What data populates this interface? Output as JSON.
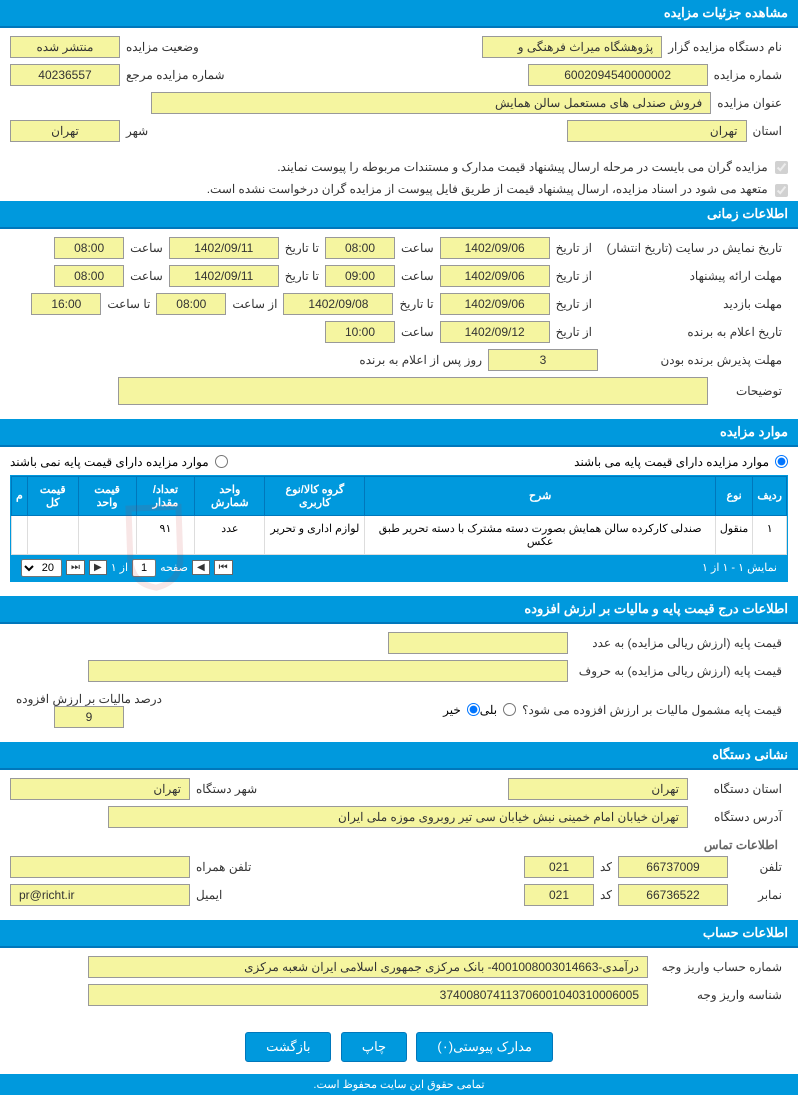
{
  "sections": {
    "details_header": "مشاهده جزئیات مزایده",
    "timing_header": "اطلاعات زمانی",
    "items_header": "موارد مزایده",
    "price_header": "اطلاعات درج قیمت پایه و مالیات بر ارزش افزوده",
    "org_header": "نشانی دستگاه",
    "account_header": "اطلاعات حساب"
  },
  "details": {
    "org_label": "نام دستگاه مزایده گزار",
    "org_value": "پژوهشگاه میراث فرهنگی و",
    "status_label": "وضعیت مزایده",
    "status_value": "منتشر شده",
    "auction_no_label": "شماره مزایده",
    "auction_no_value": "6002094540000002",
    "ref_no_label": "شماره مزایده مرجع",
    "ref_no_value": "40236557",
    "title_label": "عنوان مزایده",
    "title_value": "فروش صندلی های مستعمل سالن همایش",
    "province_label": "استان",
    "province_value": "تهران",
    "city_label": "شهر",
    "city_value": "تهران",
    "check1": "مزایده گران می بایست در مرحله ارسال پیشنهاد قیمت مدارک و مستندات مربوطه را پیوست نمایند.",
    "check2": "متعهد می شود در اسناد مزایده، ارسال پیشنهاد قیمت از طریق فایل پیوست از مزایده گران درخواست نشده است."
  },
  "timing": {
    "display_label": "تاریخ نمایش در سایت (تاریخ انتشار)",
    "from_label": "از تاریخ",
    "to_label": "تا تاریخ",
    "hour_label": "ساعت",
    "from_hour_label": "از ساعت",
    "to_hour_label": "تا ساعت",
    "display_from_date": "1402/09/06",
    "display_from_time": "08:00",
    "display_to_date": "1402/09/11",
    "display_to_time": "08:00",
    "offer_label": "مهلت ارائه پیشنهاد",
    "offer_from_date": "1402/09/06",
    "offer_from_time": "09:00",
    "offer_to_date": "1402/09/11",
    "offer_to_time": "08:00",
    "visit_label": "مهلت بازدید",
    "visit_from_date": "1402/09/06",
    "visit_to_date": "1402/09/08",
    "visit_from_time": "08:00",
    "visit_to_time": "16:00",
    "winner_label": "تاریخ اعلام به برنده",
    "winner_date": "1402/09/12",
    "winner_time": "10:00",
    "accept_label": "مهلت پذیرش برنده بودن",
    "accept_days": "3",
    "accept_suffix": "روز پس از اعلام به برنده",
    "notes_label": "توضیحات",
    "notes_value": ""
  },
  "items": {
    "has_base_label": "موارد مزایده دارای قیمت پایه می باشند",
    "no_base_label": "موارد مزایده دارای قیمت پایه نمی باشند",
    "columns": [
      "ردیف",
      "نوع",
      "شرح",
      "گروه کالا/نوع کاربری",
      "واحد شمارش",
      "تعداد/مقدار",
      "قیمت واحد",
      "قیمت کل",
      "م"
    ],
    "rows": [
      [
        "۱",
        "منقول",
        "صندلی کارکرده سالن همایش بصورت دسته مشترک با دسته تحریر طبق عکس",
        "لوازم اداری و تحریر",
        "عدد",
        "۹۱",
        "",
        "",
        ""
      ]
    ],
    "pager_info": "نمایش ۱ - ۱ از ۱",
    "page_label": "صفحه",
    "page_value": "1",
    "of_label": "از ۱",
    "page_size": "20"
  },
  "price": {
    "base_num_label": "قیمت پایه (ارزش ریالی مزایده) به عدد",
    "base_num_value": "",
    "base_text_label": "قیمت پایه (ارزش ریالی مزایده) به حروف",
    "base_text_value": "",
    "vat_q_label": "قیمت پایه مشمول مالیات بر ارزش افزوده می شود؟",
    "yes": "بلی",
    "no": "خیر",
    "vat_pct_label": "درصد مالیات بر ارزش افزوده",
    "vat_pct_value": "9"
  },
  "org": {
    "province_label": "استان دستگاه",
    "province_value": "تهران",
    "city_label": "شهر دستگاه",
    "city_value": "تهران",
    "address_label": "آدرس دستگاه",
    "address_value": "تهران خیابان امام خمینی نبش خیابان سی تیر روبروی موزه ملی ایران",
    "contact_header": "اطلاعات تماس",
    "phone_label": "تلفن",
    "phone_value": "66737009",
    "code_label": "کد",
    "code_value": "021",
    "mobile_label": "تلفن همراه",
    "mobile_value": "",
    "fax_label": "نمابر",
    "fax_value": "66736522",
    "fax_code": "021",
    "email_label": "ایمیل",
    "email_value": "pr@richt.ir"
  },
  "account": {
    "acc_label": "شماره حساب واریز وجه",
    "acc_value": "درآمدی-4001008003014663- بانک مرکزی جمهوری اسلامی ایران شعبه مرکزی",
    "id_label": "شناسه واریز وجه",
    "id_value": "374008074113706001040310006005"
  },
  "buttons": {
    "attachments": "مدارک پیوستی(۰)",
    "print": "چاپ",
    "back": "بازگشت"
  },
  "footer": "تمامی حقوق این سایت محفوظ است.",
  "colors": {
    "header_bg": "#0099dd",
    "field_bg": "#f5f5a0"
  }
}
